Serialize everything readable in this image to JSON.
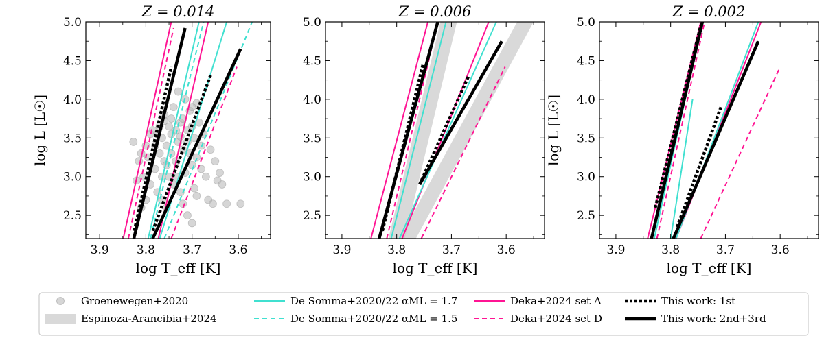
{
  "chart_data": [
    {
      "type": "line",
      "title": "Z = 0.014",
      "xlabel": "log T_eff [K]",
      "ylabel": "log L [L☉]",
      "xlim": [
        3.93,
        3.53
      ],
      "ylim": [
        2.2,
        5.0
      ],
      "x_ticks": [
        3.9,
        3.8,
        3.7,
        3.6
      ],
      "y_ticks": [
        2.5,
        3.0,
        3.5,
        4.0,
        4.5,
        5.0
      ],
      "series": [
        {
          "name": "Deka+2024 set A",
          "style": "pink-solid",
          "points": [
            [
              3.849,
              2.2
            ],
            [
              3.745,
              5.0
            ]
          ]
        },
        {
          "name": "Deka+2024 set A",
          "style": "pink-solid",
          "points": [
            [
              3.773,
              2.2
            ],
            [
              3.665,
              5.0
            ]
          ]
        },
        {
          "name": "Deka+2024 set D",
          "style": "pink-dash",
          "points": [
            [
              3.838,
              2.2
            ],
            [
              3.74,
              4.92
            ]
          ]
        },
        {
          "name": "Deka+2024 set D",
          "style": "pink-dash",
          "points": [
            [
              3.745,
              2.2
            ],
            [
              3.603,
              4.42
            ]
          ]
        },
        {
          "name": "De Somma+2020/22 α_ML = 1.7",
          "style": "cyan-solid",
          "points": [
            [
              3.795,
              2.2
            ],
            [
              3.685,
              5.0
            ]
          ]
        },
        {
          "name": "De Somma+2020/22 α_ML = 1.7",
          "style": "cyan-solid",
          "points": [
            [
              3.77,
              2.2
            ],
            [
              3.625,
              5.0
            ]
          ]
        },
        {
          "name": "De Somma+2020/22 α_ML = 1.5",
          "style": "cyan-dash",
          "points": [
            [
              3.79,
              2.2
            ],
            [
              3.675,
              5.0
            ]
          ]
        },
        {
          "name": "De Somma+2020/22 α_ML = 1.5",
          "style": "cyan-dash",
          "points": [
            [
              3.76,
              2.2
            ],
            [
              3.57,
              5.0
            ]
          ]
        },
        {
          "name": "This work: 1st",
          "style": "black-dot",
          "points": [
            [
              3.825,
              2.3
            ],
            [
              3.745,
              4.42
            ]
          ]
        },
        {
          "name": "This work: 1st",
          "style": "black-dot",
          "points": [
            [
              3.785,
              2.3
            ],
            [
              3.66,
              4.31
            ]
          ]
        },
        {
          "name": "This work: 2nd+3rd",
          "style": "black-solid",
          "points": [
            [
              3.826,
              2.2
            ],
            [
              3.715,
              4.92
            ]
          ]
        },
        {
          "name": "This work: 2nd+3rd",
          "style": "black-solid",
          "points": [
            [
              3.785,
              2.2
            ],
            [
              3.595,
              4.65
            ]
          ]
        }
      ],
      "scatter_name": "Groenewegen+2020",
      "scatter": [
        [
          3.827,
          3.45
        ],
        [
          3.82,
          2.95
        ],
        [
          3.815,
          3.2
        ],
        [
          3.81,
          3.3
        ],
        [
          3.81,
          2.6
        ],
        [
          3.805,
          3.0
        ],
        [
          3.8,
          3.4
        ],
        [
          3.8,
          2.7
        ],
        [
          3.795,
          3.25
        ],
        [
          3.79,
          3.55
        ],
        [
          3.79,
          2.9
        ],
        [
          3.785,
          3.6
        ],
        [
          3.78,
          3.1
        ],
        [
          3.78,
          3.4
        ],
        [
          3.775,
          2.8
        ],
        [
          3.77,
          3.65
        ],
        [
          3.77,
          3.3
        ],
        [
          3.765,
          3.0
        ],
        [
          3.765,
          3.5
        ],
        [
          3.76,
          3.8
        ],
        [
          3.76,
          3.2
        ],
        [
          3.755,
          2.6
        ],
        [
          3.755,
          3.4
        ],
        [
          3.75,
          3.65
        ],
        [
          3.75,
          3.0
        ],
        [
          3.745,
          3.3
        ],
        [
          3.745,
          3.55
        ],
        [
          3.74,
          3.9
        ],
        [
          3.74,
          2.9
        ],
        [
          3.735,
          3.6
        ],
        [
          3.735,
          3.2
        ],
        [
          3.73,
          3.45
        ],
        [
          3.73,
          4.1
        ],
        [
          3.725,
          3.7
        ],
        [
          3.725,
          2.8
        ],
        [
          3.72,
          3.35
        ],
        [
          3.72,
          3.75
        ],
        [
          3.715,
          3.05
        ],
        [
          3.715,
          4.0
        ],
        [
          3.71,
          3.6
        ],
        [
          3.71,
          2.5
        ],
        [
          3.705,
          3.3
        ],
        [
          3.705,
          3.85
        ],
        [
          3.7,
          3.15
        ],
        [
          3.7,
          3.65
        ],
        [
          3.695,
          2.85
        ],
        [
          3.695,
          3.5
        ],
        [
          3.69,
          3.95
        ],
        [
          3.69,
          3.25
        ],
        [
          3.685,
          3.7
        ],
        [
          3.68,
          3.4
        ],
        [
          3.68,
          3.1
        ],
        [
          3.675,
          3.55
        ],
        [
          3.67,
          3.0
        ],
        [
          3.665,
          2.7
        ],
        [
          3.66,
          3.35
        ],
        [
          3.655,
          2.65
        ],
        [
          3.65,
          3.2
        ],
        [
          3.645,
          2.95
        ],
        [
          3.64,
          3.05
        ],
        [
          3.635,
          2.9
        ],
        [
          3.625,
          2.65
        ],
        [
          3.595,
          2.65
        ],
        [
          3.7,
          2.4
        ],
        [
          3.76,
          3.72
        ],
        [
          3.725,
          3.52
        ],
        [
          3.745,
          3.75
        ],
        [
          3.71,
          3.45
        ],
        [
          3.7,
          3.9
        ],
        [
          3.72,
          2.65
        ],
        [
          3.69,
          2.75
        ],
        [
          3.735,
          3.0
        ],
        [
          3.775,
          3.55
        ],
        [
          3.755,
          3.15
        ],
        [
          3.765,
          2.7
        ]
      ]
    },
    {
      "type": "line",
      "title": "Z = 0.006",
      "xlabel": "log T_eff [K]",
      "ylabel": "",
      "xlim": [
        3.93,
        3.53
      ],
      "ylim": [
        2.2,
        5.0
      ],
      "x_ticks": [
        3.9,
        3.8,
        3.7,
        3.6
      ],
      "y_ticks": [
        2.5,
        3.0,
        3.5,
        4.0,
        4.5,
        5.0
      ],
      "bands": [
        {
          "name": "Espinoza-Arancibia+2024",
          "points": [
            [
              3.8,
              2.2
            ],
            [
              3.705,
              5.0
            ]
          ],
          "width": 0.015
        },
        {
          "name": "Espinoza-Arancibia+2024",
          "points": [
            [
              3.78,
              2.2
            ],
            [
              3.565,
              5.0
            ]
          ],
          "width": 0.015
        }
      ],
      "series": [
        {
          "name": "Deka+2024 set A",
          "style": "pink-solid",
          "points": [
            [
              3.847,
              2.2
            ],
            [
              3.743,
              5.0
            ]
          ]
        },
        {
          "name": "Deka+2024 set A",
          "style": "pink-solid",
          "points": [
            [
              3.79,
              2.2
            ],
            [
              3.632,
              5.0
            ]
          ]
        },
        {
          "name": "Deka+2024 set D",
          "style": "pink-dash",
          "points": [
            [
              3.818,
              2.2
            ],
            [
              3.725,
              5.0
            ]
          ]
        },
        {
          "name": "Deka+2024 set D",
          "style": "pink-dash",
          "points": [
            [
              3.755,
              2.2
            ],
            [
              3.602,
              4.42
            ]
          ]
        },
        {
          "name": "De Somma+2020/22 α_ML = 1.7",
          "style": "cyan-solid",
          "points": [
            [
              3.81,
              2.2
            ],
            [
              3.71,
              5.0
            ]
          ]
        },
        {
          "name": "De Somma+2020/22 α_ML = 1.7",
          "style": "cyan-solid",
          "points": [
            [
              3.795,
              2.2
            ],
            [
              3.618,
              5.0
            ]
          ]
        },
        {
          "name": "This work: 1st",
          "style": "black-dot",
          "points": [
            [
              3.826,
              2.3
            ],
            [
              3.752,
              4.45
            ]
          ]
        },
        {
          "name": "This work: 1st",
          "style": "black-dot",
          "points": [
            [
              3.758,
              2.9
            ],
            [
              3.668,
              4.31
            ]
          ]
        },
        {
          "name": "This work: 2nd+3rd",
          "style": "black-solid",
          "points": [
            [
              3.832,
              2.2
            ],
            [
              3.725,
              5.0
            ]
          ]
        },
        {
          "name": "This work: 2nd+3rd",
          "style": "black-solid",
          "points": [
            [
              3.758,
              2.9
            ],
            [
              3.608,
              4.75
            ]
          ]
        }
      ]
    },
    {
      "type": "line",
      "title": "Z = 0.002",
      "xlabel": "log T_eff [K]",
      "ylabel": "log L [L☉]",
      "xlim": [
        3.93,
        3.53
      ],
      "ylim": [
        2.2,
        5.0
      ],
      "x_ticks": [
        3.9,
        3.8,
        3.7,
        3.6
      ],
      "y_ticks": [
        2.5,
        3.0,
        3.5,
        4.0,
        4.5,
        5.0
      ],
      "series": [
        {
          "name": "Deka+2024 set A",
          "style": "pink-solid",
          "points": [
            [
              3.842,
              2.2
            ],
            [
              3.745,
              5.0
            ]
          ]
        },
        {
          "name": "Deka+2024 set A",
          "style": "pink-solid",
          "points": [
            [
              3.79,
              2.2
            ],
            [
              3.635,
              5.0
            ]
          ]
        },
        {
          "name": "Deka+2024 set D",
          "style": "pink-dash",
          "points": [
            [
              3.825,
              2.2
            ],
            [
              3.738,
              5.0
            ]
          ]
        },
        {
          "name": "Deka+2024 set D",
          "style": "pink-dash",
          "points": [
            [
              3.745,
              2.2
            ],
            [
              3.6,
              4.42
            ]
          ]
        },
        {
          "name": "De Somma+2020/22 α_ML = 1.7",
          "style": "cyan-solid",
          "points": [
            [
              3.83,
              2.2
            ],
            [
              3.742,
              5.0
            ]
          ]
        },
        {
          "name": "De Somma+2020/22 α_ML = 1.7",
          "style": "cyan-solid",
          "points": [
            [
              3.8,
              2.2
            ],
            [
              3.76,
              4.0
            ]
          ]
        },
        {
          "name": "De Somma+2020/22 α_ML = 1.7",
          "style": "cyan-solid",
          "points": [
            [
              3.79,
              2.2
            ],
            [
              3.64,
              5.0
            ]
          ]
        },
        {
          "name": "This work: 1st",
          "style": "black-dot",
          "points": [
            [
              3.828,
              2.6
            ],
            [
              3.745,
              4.95
            ]
          ]
        },
        {
          "name": "This work: 1st",
          "style": "black-dot",
          "points": [
            [
              3.788,
              2.35
            ],
            [
              3.708,
              3.9
            ]
          ]
        },
        {
          "name": "This work: 2nd+3rd",
          "style": "black-solid",
          "points": [
            [
              3.835,
              2.2
            ],
            [
              3.742,
              5.0
            ]
          ]
        },
        {
          "name": "This work: 2nd+3rd",
          "style": "black-solid",
          "points": [
            [
              3.795,
              2.2
            ],
            [
              3.64,
              4.75
            ]
          ]
        }
      ]
    }
  ],
  "legend": {
    "placement": "bottom",
    "entries": [
      {
        "label": "Groenewegen+2020",
        "style": "marker"
      },
      {
        "label": "Espinoza-Arancibia+2024",
        "style": "band"
      },
      {
        "label": "De Somma+2020/22 αML = 1.7",
        "style": "cyan-solid"
      },
      {
        "label": "De Somma+2020/22 αML = 1.5",
        "style": "cyan-dash"
      },
      {
        "label": "Deka+2024 set A",
        "style": "pink-solid"
      },
      {
        "label": "Deka+2024 set D",
        "style": "pink-dash"
      },
      {
        "label": "This work: 1st",
        "style": "black-dot"
      },
      {
        "label": "This work: 2nd+3rd",
        "style": "black-solid"
      }
    ]
  },
  "colors": {
    "pink": "#ff1493",
    "cyan": "#40e0d0",
    "black": "#000000",
    "scatter": "#bbbbbb",
    "band": "#cccccc"
  }
}
